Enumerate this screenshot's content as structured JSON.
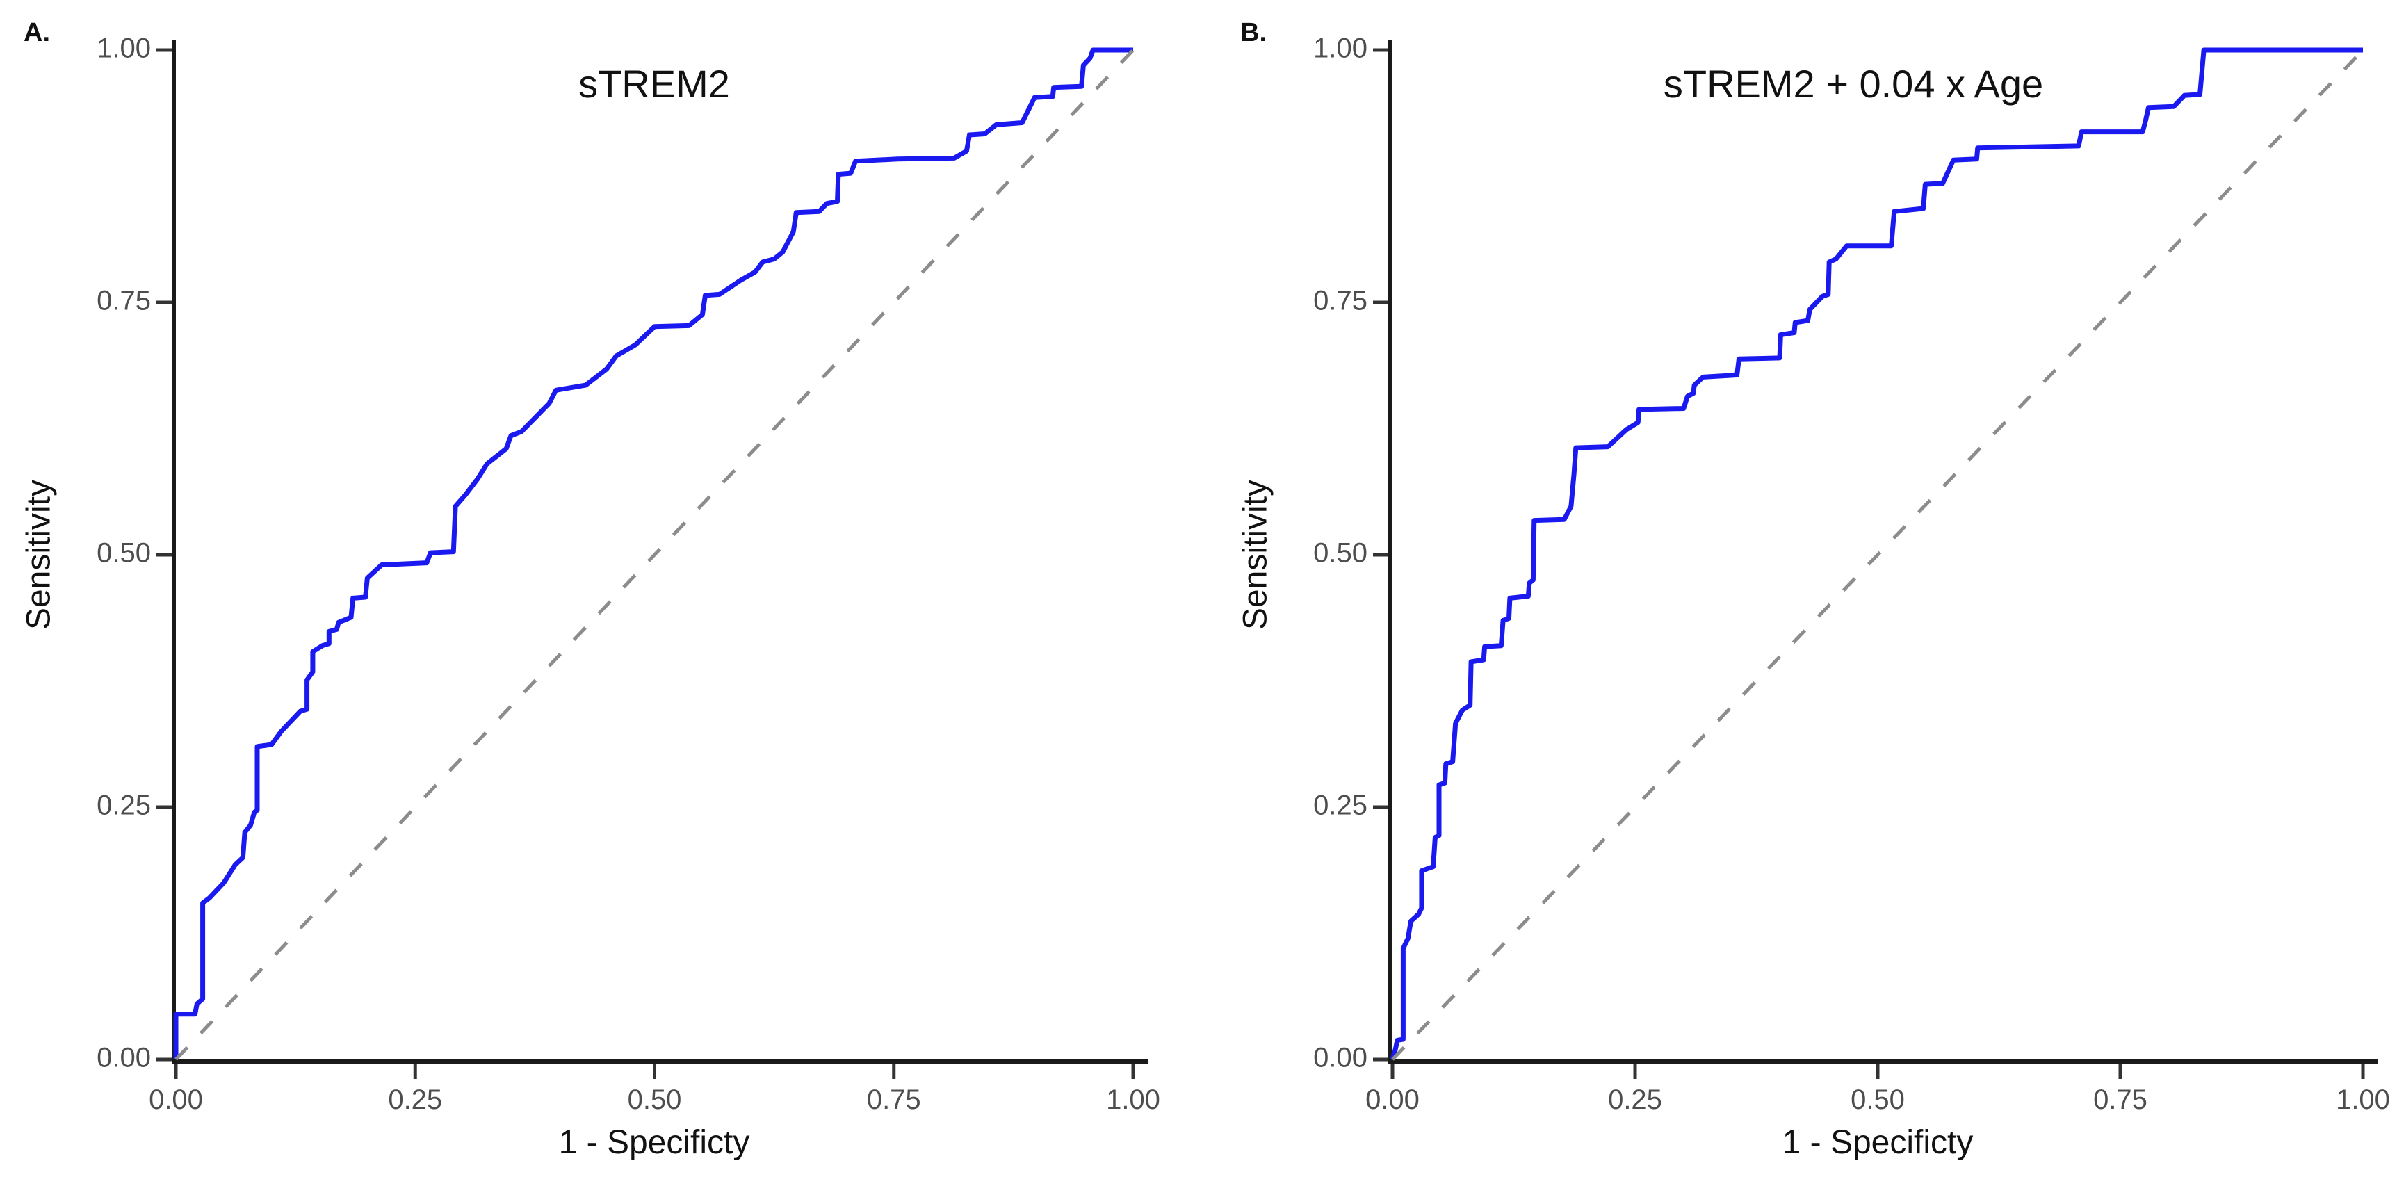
{
  "figure": {
    "background": "#ffffff",
    "panels": [
      {
        "label": "A.",
        "title": "sTREM2",
        "xlabel": "1 - Specificty",
        "ylabel": "Sensitivity",
        "x_tick_labels": [
          "0.00",
          "0.25",
          "0.50",
          "0.75",
          "1.00"
        ],
        "y_tick_labels": [
          "0.00",
          "0.25",
          "0.50",
          "0.75",
          "1.00"
        ]
      },
      {
        "label": "B.",
        "title": "sTREM2 + 0.04 x Age",
        "xlabel": "1 - Specificty",
        "ylabel": "Sensitivity",
        "x_tick_labels": [
          "0.00",
          "0.25",
          "0.50",
          "0.75",
          "1.00"
        ],
        "y_tick_labels": [
          "0.00",
          "0.25",
          "0.50",
          "0.75",
          "1.00"
        ]
      }
    ]
  },
  "colors": {
    "curve": "#1a1af0",
    "diagonal": "#8c8c8c",
    "axis": "#1a1a1a",
    "tick": "#333333",
    "tick_label": "#4d4d4d",
    "text": "#111111",
    "background": "#ffffff"
  },
  "chart_data": [
    {
      "type": "line",
      "title": "sTREM2",
      "xlabel": "1 - Specificty",
      "ylabel": "Sensitivity",
      "xlim": [
        0,
        1
      ],
      "ylim": [
        0,
        1
      ],
      "x_ticks": [
        0,
        0.25,
        0.5,
        0.75,
        1.0
      ],
      "y_ticks": [
        0,
        0.25,
        0.5,
        0.75,
        1.0
      ],
      "grid": false,
      "legend": "none",
      "series": [
        {
          "name": "ROC curve (sTREM2)",
          "style": "solid",
          "color": "#1a1af0",
          "points": [
            [
              0,
              0
            ],
            [
              0,
              0.045
            ],
            [
              0.02,
              0.045
            ],
            [
              0.022,
              0.055
            ],
            [
              0.028,
              0.06
            ],
            [
              0.028,
              0.155
            ],
            [
              0.035,
              0.16
            ],
            [
              0.05,
              0.175
            ],
            [
              0.062,
              0.193
            ],
            [
              0.07,
              0.2
            ],
            [
              0.072,
              0.225
            ],
            [
              0.078,
              0.232
            ],
            [
              0.082,
              0.245
            ],
            [
              0.085,
              0.247
            ],
            [
              0.085,
              0.31
            ],
            [
              0.1,
              0.312
            ],
            [
              0.11,
              0.325
            ],
            [
              0.13,
              0.345
            ],
            [
              0.137,
              0.347
            ],
            [
              0.137,
              0.376
            ],
            [
              0.143,
              0.384
            ],
            [
              0.143,
              0.404
            ],
            [
              0.153,
              0.41
            ],
            [
              0.16,
              0.412
            ],
            [
              0.16,
              0.424
            ],
            [
              0.168,
              0.426
            ],
            [
              0.17,
              0.433
            ],
            [
              0.183,
              0.438
            ],
            [
              0.185,
              0.457
            ],
            [
              0.198,
              0.458
            ],
            [
              0.2,
              0.477
            ],
            [
              0.215,
              0.49
            ],
            [
              0.262,
              0.492
            ],
            [
              0.266,
              0.502
            ],
            [
              0.29,
              0.503
            ],
            [
              0.292,
              0.548
            ],
            [
              0.303,
              0.56
            ],
            [
              0.315,
              0.575
            ],
            [
              0.325,
              0.59
            ],
            [
              0.345,
              0.605
            ],
            [
              0.35,
              0.618
            ],
            [
              0.361,
              0.622
            ],
            [
              0.39,
              0.65
            ],
            [
              0.397,
              0.663
            ],
            [
              0.428,
              0.668
            ],
            [
              0.45,
              0.684
            ],
            [
              0.46,
              0.697
            ],
            [
              0.48,
              0.708
            ],
            [
              0.5,
              0.726
            ],
            [
              0.536,
              0.727
            ],
            [
              0.55,
              0.738
            ],
            [
              0.553,
              0.757
            ],
            [
              0.568,
              0.758
            ],
            [
              0.59,
              0.772
            ],
            [
              0.605,
              0.78
            ],
            [
              0.613,
              0.79
            ],
            [
              0.625,
              0.793
            ],
            [
              0.634,
              0.8
            ],
            [
              0.645,
              0.82
            ],
            [
              0.648,
              0.839
            ],
            [
              0.672,
              0.84
            ],
            [
              0.68,
              0.848
            ],
            [
              0.691,
              0.85
            ],
            [
              0.692,
              0.877
            ],
            [
              0.705,
              0.878
            ],
            [
              0.71,
              0.89
            ],
            [
              0.754,
              0.892
            ],
            [
              0.813,
              0.893
            ],
            [
              0.826,
              0.9
            ],
            [
              0.829,
              0.916
            ],
            [
              0.845,
              0.917
            ],
            [
              0.857,
              0.926
            ],
            [
              0.884,
              0.928
            ],
            [
              0.897,
              0.953
            ],
            [
              0.916,
              0.954
            ],
            [
              0.917,
              0.963
            ],
            [
              0.946,
              0.964
            ],
            [
              0.948,
              0.985
            ],
            [
              0.955,
              0.992
            ],
            [
              0.958,
              1
            ],
            [
              1,
              1
            ]
          ]
        },
        {
          "name": "chance diagonal",
          "style": "dashed",
          "color": "#8c8c8c",
          "points": [
            [
              0,
              0
            ],
            [
              1,
              1
            ]
          ]
        }
      ]
    },
    {
      "type": "line",
      "title": "sTREM2 + 0.04 x Age",
      "xlabel": "1 - Specificty",
      "ylabel": "Sensitivity",
      "xlim": [
        0,
        1
      ],
      "ylim": [
        0,
        1
      ],
      "x_ticks": [
        0,
        0.25,
        0.5,
        0.75,
        1.0
      ],
      "y_ticks": [
        0,
        0.25,
        0.5,
        0.75,
        1.0
      ],
      "grid": false,
      "legend": "none",
      "series": [
        {
          "name": "ROC curve (sTREM2 + 0.04 x Age)",
          "style": "solid",
          "color": "#1a1af0",
          "points": [
            [
              0,
              0
            ],
            [
              0.003,
              0.01
            ],
            [
              0.005,
              0.019
            ],
            [
              0.011,
              0.02
            ],
            [
              0.011,
              0.11
            ],
            [
              0.016,
              0.12
            ],
            [
              0.019,
              0.137
            ],
            [
              0.027,
              0.144
            ],
            [
              0.03,
              0.15
            ],
            [
              0.03,
              0.187
            ],
            [
              0.042,
              0.191
            ],
            [
              0.044,
              0.22
            ],
            [
              0.048,
              0.222
            ],
            [
              0.048,
              0.272
            ],
            [
              0.054,
              0.274
            ],
            [
              0.055,
              0.293
            ],
            [
              0.062,
              0.295
            ],
            [
              0.065,
              0.333
            ],
            [
              0.072,
              0.346
            ],
            [
              0.08,
              0.351
            ],
            [
              0.081,
              0.394
            ],
            [
              0.094,
              0.396
            ],
            [
              0.095,
              0.409
            ],
            [
              0.112,
              0.41
            ],
            [
              0.114,
              0.435
            ],
            [
              0.12,
              0.437
            ],
            [
              0.121,
              0.457
            ],
            [
              0.14,
              0.459
            ],
            [
              0.141,
              0.472
            ],
            [
              0.145,
              0.475
            ],
            [
              0.146,
              0.534
            ],
            [
              0.177,
              0.535
            ],
            [
              0.184,
              0.548
            ],
            [
              0.187,
              0.58
            ],
            [
              0.189,
              0.606
            ],
            [
              0.222,
              0.607
            ],
            [
              0.241,
              0.624
            ],
            [
              0.253,
              0.631
            ],
            [
              0.254,
              0.644
            ],
            [
              0.3,
              0.645
            ],
            [
              0.304,
              0.657
            ],
            [
              0.31,
              0.66
            ],
            [
              0.311,
              0.668
            ],
            [
              0.32,
              0.676
            ],
            [
              0.355,
              0.678
            ],
            [
              0.357,
              0.694
            ],
            [
              0.399,
              0.695
            ],
            [
              0.4,
              0.718
            ],
            [
              0.414,
              0.72
            ],
            [
              0.415,
              0.73
            ],
            [
              0.428,
              0.732
            ],
            [
              0.43,
              0.743
            ],
            [
              0.443,
              0.756
            ],
            [
              0.449,
              0.758
            ],
            [
              0.45,
              0.79
            ],
            [
              0.457,
              0.793
            ],
            [
              0.468,
              0.806
            ],
            [
              0.514,
              0.806
            ],
            [
              0.517,
              0.84
            ],
            [
              0.547,
              0.843
            ],
            [
              0.549,
              0.867
            ],
            [
              0.567,
              0.868
            ],
            [
              0.578,
              0.891
            ],
            [
              0.602,
              0.892
            ],
            [
              0.603,
              0.903
            ],
            [
              0.707,
              0.905
            ],
            [
              0.71,
              0.919
            ],
            [
              0.773,
              0.919
            ],
            [
              0.776,
              0.93
            ],
            [
              0.779,
              0.943
            ],
            [
              0.805,
              0.944
            ],
            [
              0.816,
              0.955
            ],
            [
              0.832,
              0.956
            ],
            [
              0.836,
              1
            ],
            [
              1,
              1
            ]
          ]
        },
        {
          "name": "chance diagonal",
          "style": "dashed",
          "color": "#8c8c8c",
          "points": [
            [
              0,
              0
            ],
            [
              1,
              1
            ]
          ]
        }
      ]
    }
  ]
}
